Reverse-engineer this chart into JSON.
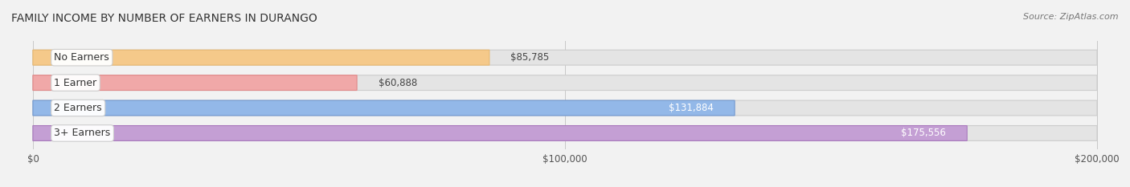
{
  "title": "FAMILY INCOME BY NUMBER OF EARNERS IN DURANGO",
  "source": "Source: ZipAtlas.com",
  "categories": [
    "No Earners",
    "1 Earner",
    "2 Earners",
    "3+ Earners"
  ],
  "values": [
    85785,
    60888,
    131884,
    175556
  ],
  "labels": [
    "$85,785",
    "$60,888",
    "$131,884",
    "$175,556"
  ],
  "bar_colors": [
    "#f5c98a",
    "#f0a8a8",
    "#93b8e8",
    "#c49fd4"
  ],
  "bar_edge_colors": [
    "#e8b870",
    "#e08888",
    "#7098d0",
    "#a878bc"
  ],
  "background_color": "#f2f2f2",
  "xlim_max": 200000,
  "xticks": [
    0,
    100000,
    200000
  ],
  "xtick_labels": [
    "$0",
    "$100,000",
    "$200,000"
  ],
  "title_fontsize": 10,
  "source_fontsize": 8,
  "label_fontsize": 8.5,
  "tick_fontsize": 8.5,
  "category_fontsize": 9
}
